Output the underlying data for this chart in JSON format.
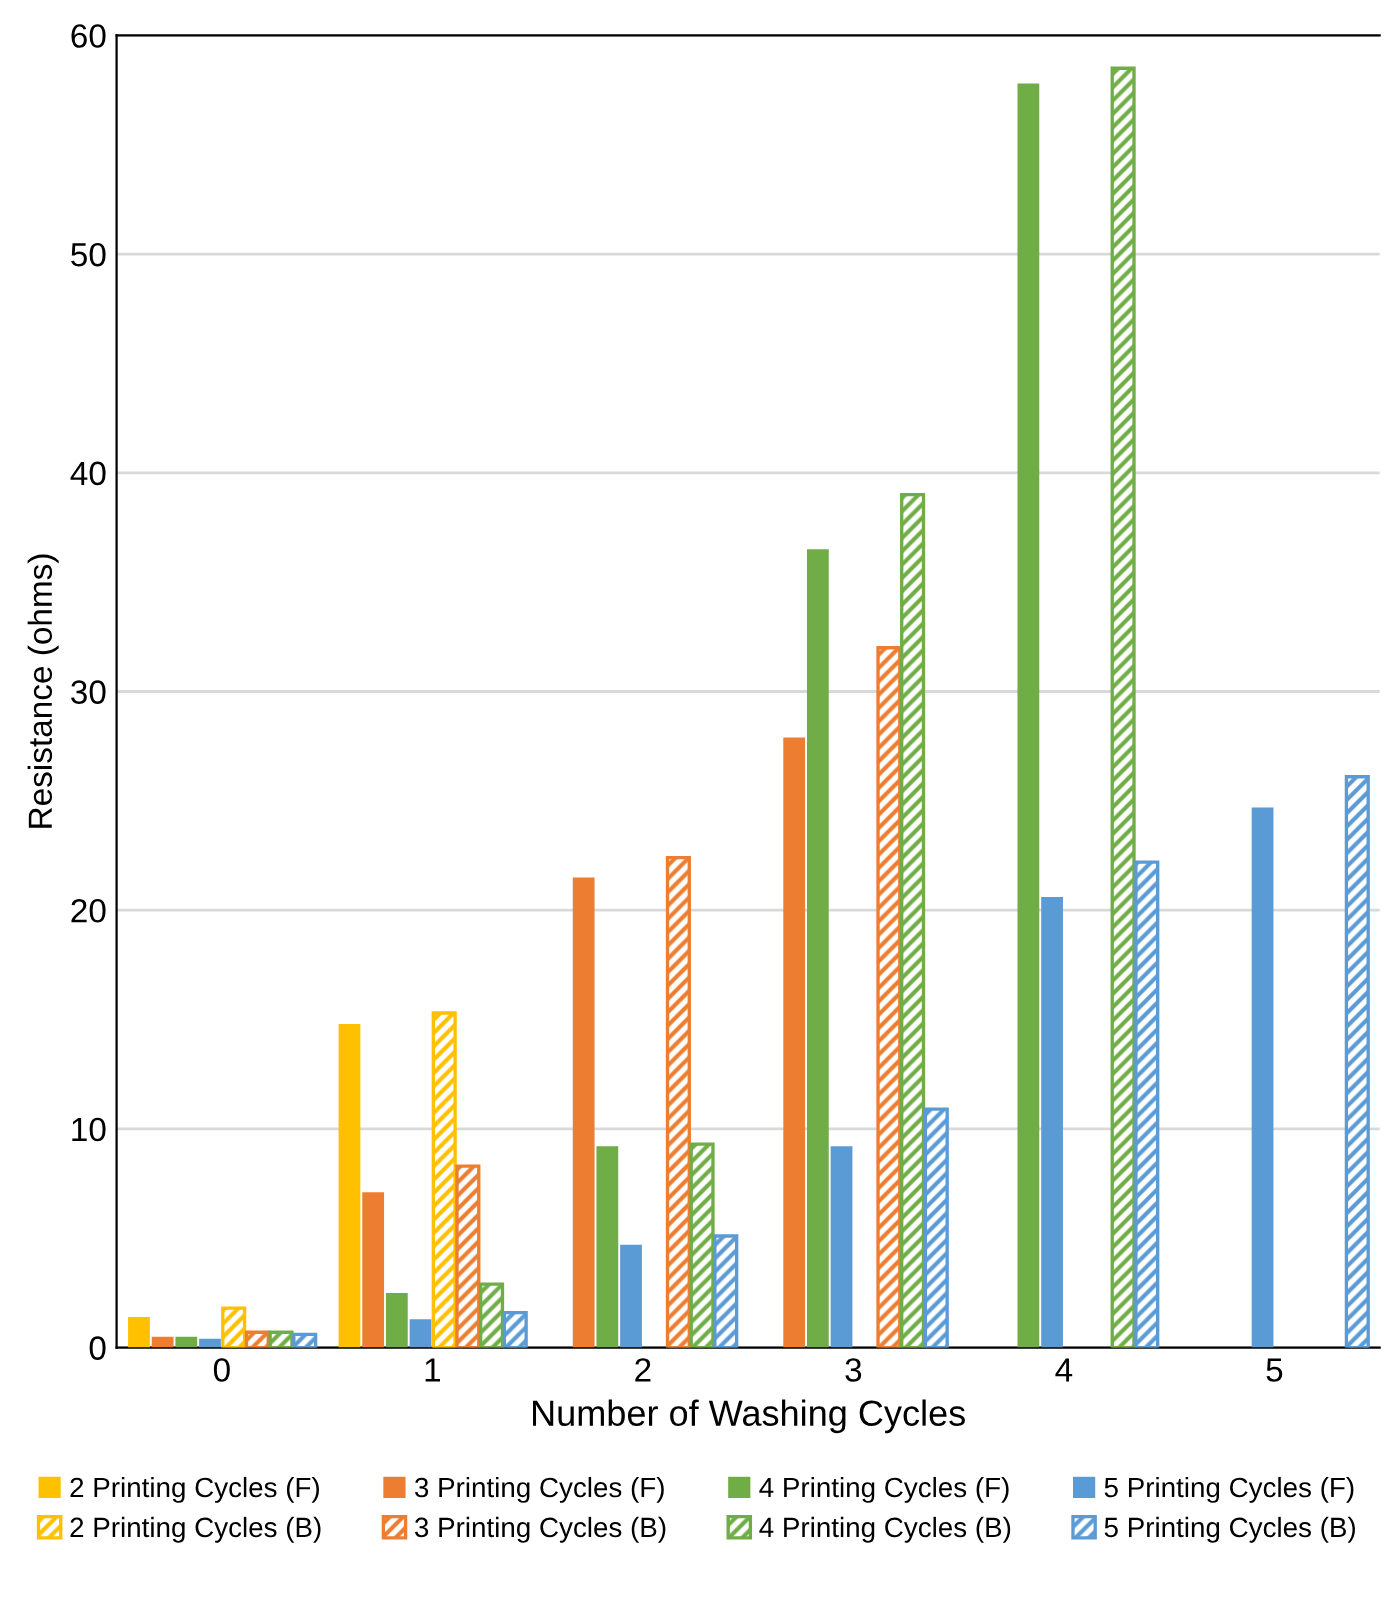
{
  "chart_data": {
    "type": "bar",
    "xlabel": "Number of Washing Cycles",
    "ylabel": "Resistance (ohms)",
    "categories": [
      "0",
      "1",
      "2",
      "3",
      "4",
      "5"
    ],
    "ylim": [
      0,
      60
    ],
    "yticks": [
      0,
      10,
      20,
      30,
      40,
      50,
      60
    ],
    "grid": "y",
    "legend": "bottom",
    "series": [
      {
        "name": "2 Printing Cycles (F)",
        "color": "#ffc000",
        "values": [
          1.4,
          14.8,
          null,
          null,
          null,
          null
        ]
      },
      {
        "name": "3 Printing Cycles (F)",
        "color": "#ed7d31",
        "values": [
          0.5,
          7.1,
          21.5,
          27.9,
          null,
          null
        ]
      },
      {
        "name": "4 Printing Cycles (F)",
        "color": "#70ad47",
        "values": [
          0.5,
          2.5,
          9.2,
          36.5,
          57.8,
          null
        ]
      },
      {
        "name": "5 Printing Cycles (F)",
        "color": "#5b9bd5",
        "values": [
          0.4,
          1.3,
          4.7,
          9.2,
          20.6,
          24.7
        ]
      },
      {
        "name": "2 Printing Cycles (B)",
        "color": "#ffc000",
        "values": [
          1.8,
          15.3,
          null,
          null,
          null,
          null
        ]
      },
      {
        "name": "3 Printing Cycles (B)",
        "color": "#ed7d31",
        "values": [
          0.7,
          8.3,
          22.4,
          32.0,
          null,
          null
        ]
      },
      {
        "name": "4 Printing Cycles (B)",
        "color": "#70ad47",
        "values": [
          0.7,
          2.9,
          9.3,
          39.0,
          58.5,
          null
        ]
      },
      {
        "name": "5 Printing Cycles (B)",
        "color": "#5b9bd5",
        "values": [
          0.6,
          1.6,
          5.1,
          10.9,
          22.2,
          26.1
        ]
      }
    ]
  }
}
